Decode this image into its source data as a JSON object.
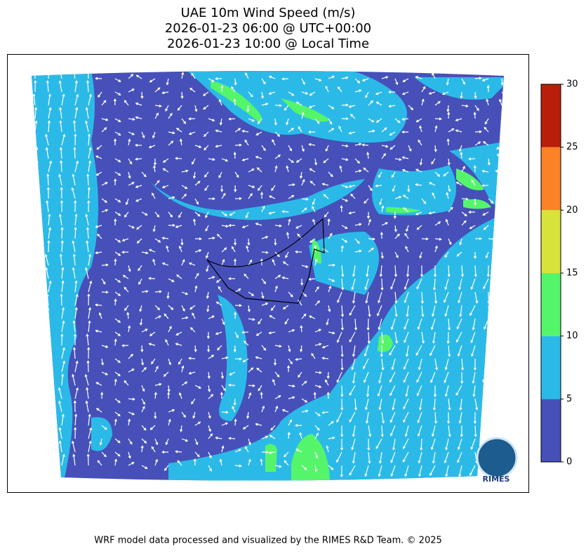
{
  "title": [
    "UAE 10m Wind Speed (m/s)",
    "2026-01-23 06:00 @ UTC+00:00",
    "2026-01-23 10:00 @ Local Time"
  ],
  "colorbar": {
    "levels": [
      0,
      5,
      10,
      15,
      20,
      25,
      30
    ],
    "colors": [
      "#4650b8",
      "#2bbae8",
      "#55f56b",
      "#d7e23a",
      "#fb8226",
      "#b81e0a"
    ]
  },
  "logo": "RIMES",
  "footer": "WRF model data processed and visualized by the RIMES R&D Team. © 2025"
}
